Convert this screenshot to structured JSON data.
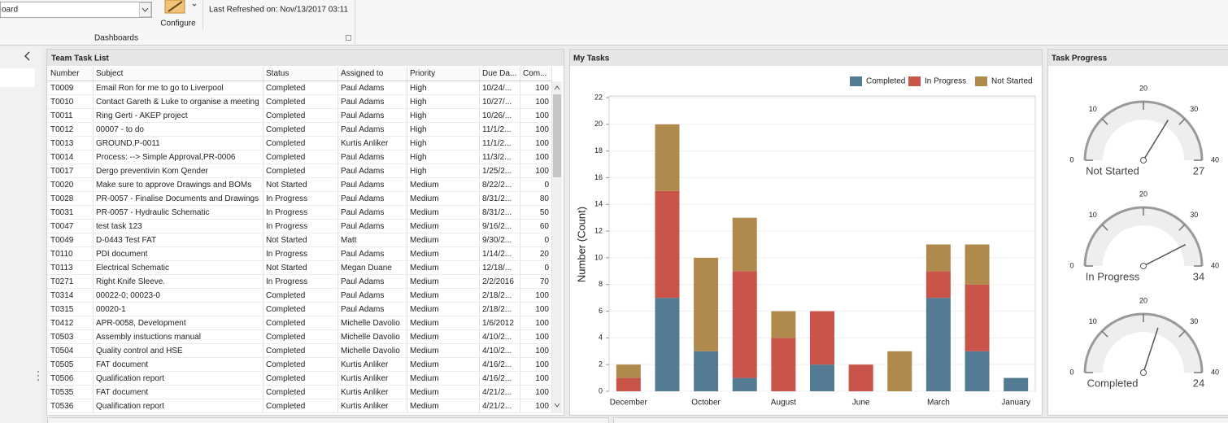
{
  "ribbon": {
    "dashboard_select": "oard",
    "configure": "Configure",
    "last_refreshed": "Last Refreshed on: Nov/13/2017 03:11",
    "group": "Dashboards"
  },
  "task_list": {
    "title": "Team Task List",
    "columns": [
      "Number",
      "Subject",
      "Status",
      "Assigned to",
      "Priority",
      "Due Da...",
      "Com..."
    ],
    "rows": [
      [
        "T0009",
        "Email Ron for me to go to Liverpool",
        "Completed",
        "Paul Adams",
        "High",
        "10/24/...",
        100
      ],
      [
        "T0010",
        "Contact Gareth & Luke to organise a meeting",
        "Completed",
        "Paul Adams",
        "High",
        "10/27/...",
        100
      ],
      [
        "T0011",
        "Ring Gerti - AKEP project",
        "Completed",
        "Paul Adams",
        "High",
        "10/26/...",
        100
      ],
      [
        "T0012",
        "00007 - to do",
        "Completed",
        "Paul Adams",
        "High",
        "11/1/2...",
        100
      ],
      [
        "T0013",
        "GROUND,P-0011",
        "Completed",
        "Kurtis Anliker",
        "High",
        "11/1/2...",
        100
      ],
      [
        "T0014",
        "Process: --> Simple Approval,PR-0006",
        "Completed",
        "Paul Adams",
        "High",
        "11/3/2...",
        100
      ],
      [
        "T0017",
        "Dergo preventivin Kom Qender",
        "Completed",
        "Paul Adams",
        "High",
        "1/25/2...",
        100
      ],
      [
        "T0020",
        "Make sure to approve Drawings and BOMs",
        "Not Started",
        "Paul Adams",
        "Medium",
        "8/22/2...",
        0
      ],
      [
        "T0028",
        "PR-0057 - Finalise Documents and Drawings",
        "In Progress",
        "Paul Adams",
        "Medium",
        "8/31/2...",
        80
      ],
      [
        "T0031",
        "PR-0057 - Hydraulic Schematic",
        "In Progress",
        "Paul Adams",
        "Medium",
        "8/31/2...",
        50
      ],
      [
        "T0047",
        "test task 123",
        "In Progress",
        "Paul Adams",
        "Medium",
        "9/16/2...",
        60
      ],
      [
        "T0049",
        "D-0443 Test FAT",
        "Not Started",
        "Matt",
        "Medium",
        "9/30/2...",
        0
      ],
      [
        "T0110",
        "PDI document",
        "In Progress",
        "Paul Adams",
        "Medium",
        "1/14/2...",
        20
      ],
      [
        "T0113",
        "Electrical Schematic",
        "Not Started",
        "Megan Duane",
        "Medium",
        "12/18/...",
        0
      ],
      [
        "T0271",
        "Right Knife Sleeve.",
        "In Progress",
        "Paul Adams",
        "Medium",
        "2/2/2016",
        70
      ],
      [
        "T0314",
        "00022-0; 00023-0",
        "Completed",
        "Paul Adams",
        "Medium",
        "2/18/2...",
        100
      ],
      [
        "T0315",
        "00020-1",
        "Completed",
        "Paul Adams",
        "Medium",
        "2/18/2...",
        100
      ],
      [
        "T0412",
        "APR-0058, Development",
        "Completed",
        "Michelle Davolio",
        "Medium",
        "1/6/2012",
        100
      ],
      [
        "T0503",
        "Assembly instuctions manual",
        "Completed",
        "Michelle Davolio",
        "Medium",
        "4/10/2...",
        100
      ],
      [
        "T0504",
        "Quality control and HSE",
        "Completed",
        "Michelle Davolio",
        "Medium",
        "4/10/2...",
        100
      ],
      [
        "T0505",
        "FAT document",
        "Completed",
        "Kurtis Anliker",
        "Medium",
        "4/16/2...",
        100
      ],
      [
        "T0506",
        "Qualification report",
        "Completed",
        "Kurtis Anliker",
        "Medium",
        "4/16/2...",
        100
      ],
      [
        "T0535",
        "FAT document",
        "Completed",
        "Kurtis Anliker",
        "Medium",
        "4/21/2...",
        100
      ],
      [
        "T0536",
        "Qualification report",
        "Completed",
        "Kurtis Anliker",
        "Medium",
        "4/21/2...",
        100
      ]
    ]
  },
  "chart_data": [
    {
      "type": "bar",
      "stacked": true,
      "title": "My Tasks",
      "y_label": "Number (Count)",
      "categories": [
        "December",
        null,
        "October",
        null,
        "August",
        null,
        "June",
        null,
        "March",
        null,
        "January"
      ],
      "series": [
        {
          "name": "Completed",
          "color": "#537b94",
          "values": [
            0,
            7,
            3,
            1,
            0,
            2,
            0,
            0,
            7,
            3,
            1
          ]
        },
        {
          "name": "In Progress",
          "color": "#c9544a",
          "values": [
            1,
            8,
            0,
            8,
            4,
            4,
            2,
            0,
            2,
            5,
            0
          ]
        },
        {
          "name": "Not Started",
          "color": "#b0894c",
          "values": [
            1,
            5,
            7,
            4,
            2,
            0,
            0,
            3,
            2,
            3,
            0
          ]
        }
      ],
      "ylim": [
        0,
        22
      ],
      "yticks": [
        0,
        2,
        4,
        6,
        8,
        10,
        12,
        14,
        16,
        18,
        20,
        22
      ],
      "grid": true,
      "legend": "top-right"
    },
    {
      "type": "gauge",
      "title": "Task Progress",
      "ylim": [
        0,
        40
      ],
      "yticks": [
        0,
        10,
        20,
        30,
        40
      ],
      "gauges": [
        {
          "label": "Not Started",
          "value": 27
        },
        {
          "label": "In Progress",
          "value": 34
        },
        {
          "label": "Completed",
          "value": 24
        }
      ]
    }
  ]
}
